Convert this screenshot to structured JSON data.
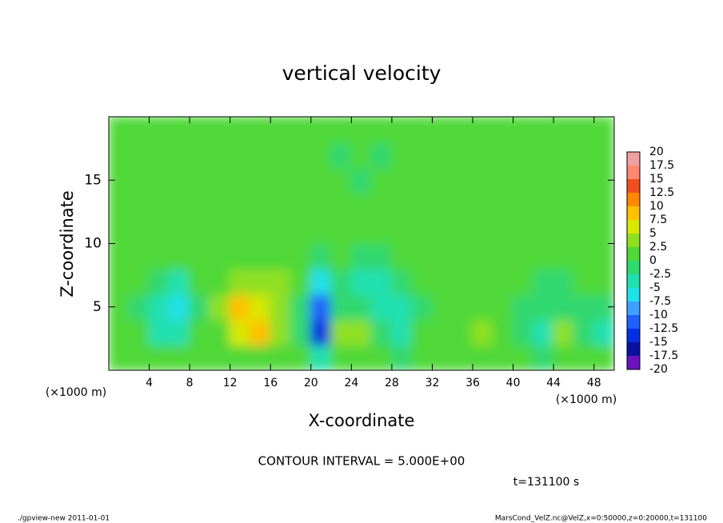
{
  "chart_data": {
    "type": "contour",
    "title": "vertical velocity",
    "x_label": "X-coordinate",
    "y_label": "Z-coordinate",
    "x_unit": "(×1000 m)",
    "y_unit": "(×1000 m)",
    "xlim": [
      0,
      50
    ],
    "xticks": [
      4,
      8,
      12,
      16,
      20,
      24,
      28,
      32,
      36,
      40,
      44,
      48
    ],
    "ylim": [
      0,
      20
    ],
    "yticks": [
      5,
      10,
      15
    ],
    "x": [
      1,
      3,
      5,
      7,
      9,
      11,
      13,
      15,
      17,
      19,
      21,
      23,
      25,
      27,
      29,
      31,
      33,
      35,
      37,
      39,
      41,
      43,
      45,
      47,
      49
    ],
    "y": [
      1,
      3,
      5,
      7,
      9,
      11,
      13,
      15,
      17,
      19
    ],
    "z": [
      [
        1,
        1,
        0,
        0,
        1,
        1,
        2,
        2,
        1,
        0,
        -3,
        0,
        1,
        0,
        -1,
        0,
        1,
        0,
        2,
        1,
        0,
        -1,
        0,
        0,
        0
      ],
      [
        1,
        0,
        -3,
        -4,
        0,
        2,
        6,
        8,
        3,
        -1,
        -14,
        3,
        4,
        -2,
        -4,
        0,
        1,
        1,
        3,
        1,
        -2,
        -4,
        3,
        -1,
        -5
      ],
      [
        1,
        -1,
        -5,
        -6,
        -1,
        3,
        9,
        7,
        4,
        -1,
        -11,
        -1,
        -2,
        -3,
        -5,
        -1,
        0,
        1,
        1,
        0,
        -1,
        -2,
        -1,
        -1,
        -1
      ],
      [
        1,
        0,
        -2,
        -3,
        0,
        2,
        4,
        3,
        3,
        0,
        -6,
        -1,
        -3,
        -3,
        -2,
        0,
        0,
        1,
        1,
        1,
        0,
        -1,
        -1,
        0,
        0
      ],
      [
        0,
        1,
        0,
        0,
        1,
        1,
        2,
        2,
        2,
        1,
        -1,
        0,
        -1,
        -1,
        0,
        0,
        1,
        1,
        1,
        1,
        1,
        0,
        0,
        0,
        0
      ],
      [
        0,
        1,
        1,
        1,
        2,
        2,
        2,
        2,
        1,
        1,
        0,
        0,
        0,
        0,
        0,
        1,
        1,
        1,
        2,
        1,
        1,
        1,
        1,
        0,
        0
      ],
      [
        1,
        1,
        1,
        1,
        2,
        2,
        2,
        2,
        1,
        1,
        1,
        1,
        0,
        0,
        0,
        1,
        1,
        1,
        1,
        1,
        1,
        1,
        1,
        1,
        1
      ],
      [
        1,
        1,
        1,
        1,
        1,
        2,
        2,
        1,
        1,
        1,
        0,
        0,
        -1,
        0,
        0,
        1,
        1,
        1,
        1,
        1,
        1,
        1,
        1,
        1,
        1
      ],
      [
        1,
        1,
        1,
        1,
        1,
        1,
        1,
        1,
        0,
        0,
        0,
        -1,
        0,
        -1,
        0,
        0,
        1,
        0,
        0,
        0,
        0,
        1,
        1,
        1,
        1
      ],
      [
        1,
        0,
        1,
        0,
        1,
        1,
        1,
        1,
        0,
        0,
        0,
        0,
        0,
        0,
        0,
        0,
        0,
        0,
        0,
        0,
        0,
        0,
        1,
        1,
        0
      ]
    ],
    "levels": [
      -20,
      -17.5,
      -15,
      -12.5,
      -10,
      -7.5,
      -5,
      -2.5,
      0,
      2.5,
      5,
      7.5,
      10,
      12.5,
      15,
      17.5,
      20
    ],
    "colors": [
      "#6a12c0",
      "#0a10a0",
      "#0030e0",
      "#2060ff",
      "#40a0ff",
      "#20e0e8",
      "#20e0b0",
      "#30d870",
      "#50d838",
      "#90e020",
      "#d8e800",
      "#ffc000",
      "#ff8800",
      "#f05020",
      "#ff8870",
      "#f0a0a0"
    ],
    "contour_interval": "CONTOUR INTERVAL = 5.000E+00",
    "time": "t=131100 s",
    "footer_left": "./gpview-new   2011-01-01",
    "footer_right": "MarsCond_VelZ.nc@VelZ,x=0:50000,z=0:20000,t=131100"
  }
}
